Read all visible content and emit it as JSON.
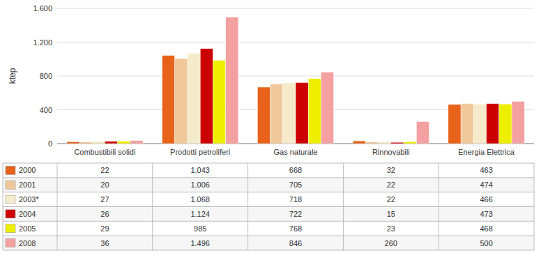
{
  "chart_data": {
    "type": "bar",
    "ylabel": "ktep",
    "categories": [
      "Combustibili solidi",
      "Prodotti petroliferi",
      "Gas naturale",
      "Rinnovabili",
      "Energia Elettrica"
    ],
    "series": [
      {
        "name": "2000",
        "color": "#E8621A",
        "values": [
          22,
          1043,
          668,
          32,
          463
        ],
        "value_labels": [
          "22",
          "1.043",
          "668",
          "32",
          "463"
        ]
      },
      {
        "name": "2001",
        "color": "#F0C89A",
        "values": [
          20,
          1006,
          705,
          22,
          474
        ],
        "value_labels": [
          "20",
          "1.006",
          "705",
          "22",
          "474"
        ]
      },
      {
        "name": "2003*",
        "color": "#F5EBCA",
        "values": [
          27,
          1068,
          718,
          22,
          466
        ],
        "value_labels": [
          "27",
          "1.068",
          "718",
          "22",
          "466"
        ]
      },
      {
        "name": "2004",
        "color": "#CC0000",
        "values": [
          26,
          1124,
          722,
          15,
          473
        ],
        "value_labels": [
          "26",
          "1.124",
          "722",
          "15",
          "473"
        ]
      },
      {
        "name": "2005",
        "color": "#EEEE00",
        "values": [
          29,
          985,
          768,
          23,
          468
        ],
        "value_labels": [
          "29",
          "985",
          "768",
          "23",
          "468"
        ]
      },
      {
        "name": "2008",
        "color": "#F4A0A0",
        "values": [
          36,
          1496,
          846,
          260,
          500
        ],
        "value_labels": [
          "36",
          "1.496",
          "846",
          "260",
          "500"
        ]
      }
    ],
    "ylim": [
      0,
      1600
    ],
    "yticks": [
      0,
      400,
      800,
      {
        "value": 1200,
        "label": "1.200"
      },
      {
        "value": 1600,
        "label": "1.600"
      }
    ],
    "grid": true,
    "legend": "bottom"
  }
}
